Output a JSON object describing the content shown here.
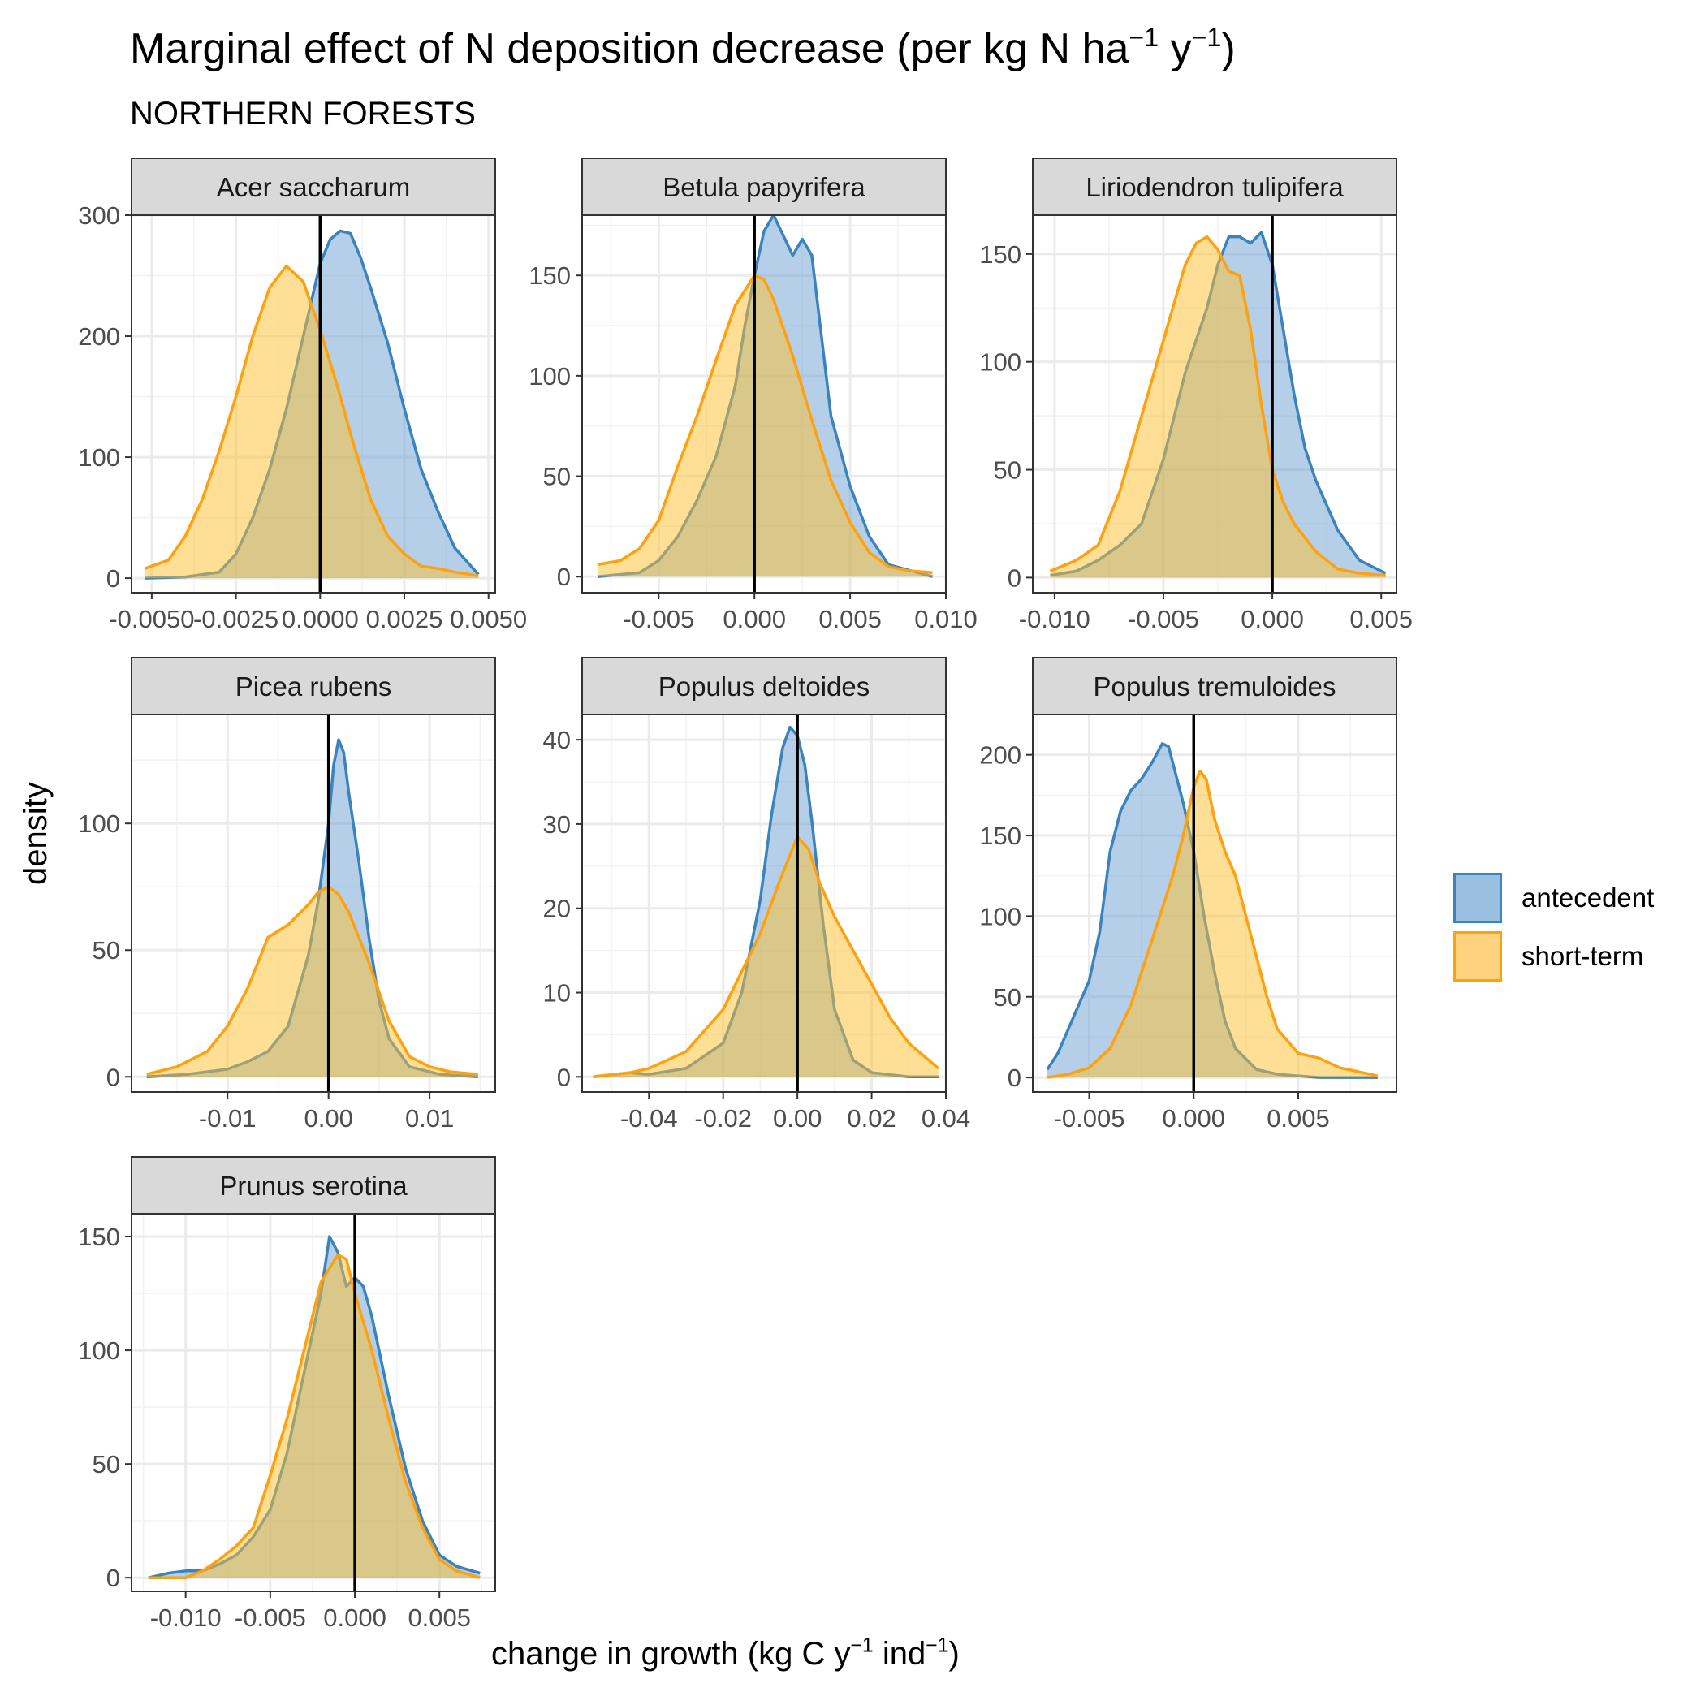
{
  "title": {
    "main": "Marginal effect of N deposition decrease (per kg N ha",
    "exp1": "−1",
    "mid": " y",
    "exp2": "−1",
    "end": ")"
  },
  "subtitle": "NORTHERN FORESTS",
  "xlabel": {
    "main": "change in growth (kg C y",
    "exp1": "−1",
    "mid": " ind",
    "exp2": "−1",
    "end": ")"
  },
  "ylabel": "density",
  "legend": [
    {
      "label": "antecedent",
      "stroke": "#3a83bd",
      "fill": "#9bbfe0"
    },
    {
      "label": "short-term",
      "stroke": "#ffa10f",
      "fill": "#ffd27f"
    }
  ],
  "chart_data": {
    "type": "area",
    "facet_layout": "3 columns",
    "grid": true,
    "legend_position": "right",
    "vline_x": 0,
    "colors": {
      "antecedent": "#3a83bd",
      "short_term": "#ffa10f",
      "overlap": "#c7b06f",
      "strip": "#d9d9d9"
    },
    "panels": [
      {
        "name": "Acer saccharum",
        "xlim": [
          -0.0056,
          0.0052
        ],
        "ylim": [
          -12,
          300
        ],
        "xticks": [
          -0.005,
          -0.0025,
          0,
          0.0025,
          0.005
        ],
        "xtick_labels": [
          "-0.0050",
          "-0.0025",
          "0.0000",
          "0.0025",
          "0.0050"
        ],
        "yticks": [
          0,
          100,
          200,
          300
        ],
        "ytick_labels": [
          "0",
          "100",
          "200",
          "300"
        ],
        "series": [
          {
            "name": "antecedent",
            "x": [
              -0.0052,
              -0.004,
              -0.003,
              -0.0025,
              -0.002,
              -0.0015,
              -0.001,
              -0.0005,
              0,
              0.0003,
              0.0006,
              0.0009,
              0.0012,
              0.0015,
              0.002,
              0.0025,
              0.003,
              0.0035,
              0.004,
              0.0047
            ],
            "y": [
              0,
              1,
              5,
              20,
              50,
              90,
              140,
              200,
              260,
              280,
              287,
              285,
              265,
              240,
              195,
              140,
              90,
              55,
              25,
              3
            ]
          },
          {
            "name": "short-term",
            "x": [
              -0.0052,
              -0.0045,
              -0.004,
              -0.0035,
              -0.003,
              -0.0025,
              -0.002,
              -0.0015,
              -0.001,
              -0.0005,
              0,
              0.0005,
              0.001,
              0.0015,
              0.002,
              0.0025,
              0.003,
              0.0035,
              0.004,
              0.0047
            ],
            "y": [
              8,
              15,
              35,
              65,
              105,
              150,
              200,
              240,
              258,
              245,
              205,
              160,
              110,
              65,
              35,
              20,
              10,
              8,
              5,
              2
            ]
          }
        ]
      },
      {
        "name": "Betula papyrifera",
        "xlim": [
          -0.009,
          0.01
        ],
        "ylim": [
          -8,
          180
        ],
        "xticks": [
          -0.005,
          0,
          0.005,
          0.01
        ],
        "xtick_labels": [
          "-0.005",
          "0.000",
          "0.005",
          "0.010"
        ],
        "yticks": [
          0,
          50,
          100,
          150
        ],
        "ytick_labels": [
          "0",
          "50",
          "100",
          "150"
        ],
        "series": [
          {
            "name": "antecedent",
            "x": [
              -0.0082,
              -0.006,
              -0.005,
              -0.004,
              -0.003,
              -0.002,
              -0.001,
              -0.0005,
              0,
              0.0005,
              0.001,
              0.0015,
              0.002,
              0.0025,
              0.003,
              0.0035,
              0.004,
              0.005,
              0.006,
              0.007,
              0.0093
            ],
            "y": [
              0,
              2,
              8,
              20,
              38,
              60,
              95,
              125,
              150,
              172,
              180,
              170,
              160,
              168,
              160,
              120,
              80,
              45,
              20,
              6,
              0
            ]
          },
          {
            "name": "short-term",
            "x": [
              -0.0082,
              -0.007,
              -0.006,
              -0.005,
              -0.004,
              -0.003,
              -0.002,
              -0.001,
              0,
              0.0005,
              0.001,
              0.002,
              0.003,
              0.004,
              0.005,
              0.006,
              0.007,
              0.008,
              0.0093
            ],
            "y": [
              6,
              8,
              14,
              28,
              55,
              80,
              108,
              135,
              150,
              148,
              138,
              110,
              78,
              48,
              27,
              12,
              5,
              3,
              2
            ]
          }
        ]
      },
      {
        "name": "Liriodendron tulipifera",
        "xlim": [
          -0.011,
          0.0057
        ],
        "ylim": [
          -7,
          168
        ],
        "xticks": [
          -0.01,
          -0.005,
          0,
          0.005
        ],
        "xtick_labels": [
          "-0.010",
          "-0.005",
          "0.000",
          "0.005"
        ],
        "yticks": [
          0,
          50,
          100,
          150
        ],
        "ytick_labels": [
          "0",
          "50",
          "100",
          "150"
        ],
        "series": [
          {
            "name": "antecedent",
            "x": [
              -0.0102,
              -0.009,
              -0.008,
              -0.007,
              -0.006,
              -0.005,
              -0.004,
              -0.003,
              -0.0025,
              -0.002,
              -0.0015,
              -0.001,
              -0.0005,
              0,
              0.0005,
              0.001,
              0.0015,
              0.002,
              0.003,
              0.004,
              0.0052
            ],
            "y": [
              1,
              3,
              8,
              15,
              25,
              55,
              95,
              125,
              145,
              158,
              158,
              155,
              160,
              145,
              115,
              85,
              60,
              45,
              22,
              8,
              2
            ]
          },
          {
            "name": "short-term",
            "x": [
              -0.0102,
              -0.009,
              -0.008,
              -0.007,
              -0.006,
              -0.005,
              -0.004,
              -0.0035,
              -0.003,
              -0.0025,
              -0.002,
              -0.0015,
              -0.001,
              -0.0005,
              0,
              0.0005,
              0.001,
              0.002,
              0.003,
              0.004,
              0.0052
            ],
            "y": [
              3,
              8,
              15,
              40,
              75,
              110,
              145,
              155,
              158,
              152,
              142,
              140,
              115,
              80,
              50,
              35,
              25,
              12,
              4,
              2,
              1
            ]
          }
        ]
      },
      {
        "name": "Picea rubens",
        "xlim": [
          -0.0195,
          0.0165
        ],
        "ylim": [
          -6,
          143
        ],
        "xticks": [
          -0.01,
          0,
          0.01
        ],
        "xtick_labels": [
          "-0.01",
          "0.00",
          "0.01"
        ],
        "yticks": [
          0,
          50,
          100
        ],
        "ytick_labels": [
          "0",
          "50",
          "100"
        ],
        "series": [
          {
            "name": "antecedent",
            "x": [
              -0.018,
              -0.014,
              -0.01,
              -0.008,
              -0.006,
              -0.004,
              -0.002,
              -0.001,
              0,
              0.0005,
              0.001,
              0.0015,
              0.002,
              0.003,
              0.004,
              0.005,
              0.006,
              0.008,
              0.011,
              0.0148
            ],
            "y": [
              0,
              1,
              3,
              6,
              10,
              20,
              48,
              70,
              100,
              123,
              133,
              128,
              112,
              85,
              55,
              30,
              15,
              4,
              1,
              0
            ]
          },
          {
            "name": "short-term",
            "x": [
              -0.018,
              -0.015,
              -0.012,
              -0.01,
              -0.008,
              -0.006,
              -0.004,
              -0.002,
              -0.001,
              0,
              0.001,
              0.002,
              0.004,
              0.006,
              0.008,
              0.01,
              0.012,
              0.0148
            ],
            "y": [
              1,
              4,
              10,
              20,
              35,
              55,
              60,
              68,
              73,
              75,
              72,
              65,
              45,
              22,
              8,
              4,
              2,
              1
            ]
          }
        ]
      },
      {
        "name": "Populus deltoides",
        "xlim": [
          -0.058,
          0.04
        ],
        "ylim": [
          -1.8,
          43
        ],
        "xticks": [
          -0.04,
          -0.02,
          0,
          0.02,
          0.04
        ],
        "xtick_labels": [
          "-0.04",
          "-0.02",
          "0.00",
          "0.02",
          "0.04"
        ],
        "yticks": [
          0,
          10,
          20,
          30,
          40
        ],
        "ytick_labels": [
          "0",
          "10",
          "20",
          "30",
          "40"
        ],
        "series": [
          {
            "name": "antecedent",
            "x": [
              -0.055,
              -0.045,
              -0.04,
              -0.03,
              -0.02,
              -0.015,
              -0.01,
              -0.007,
              -0.004,
              -0.002,
              0,
              0.002,
              0.004,
              0.007,
              0.01,
              0.015,
              0.02,
              0.03,
              0.038
            ],
            "y": [
              0,
              0.5,
              0.3,
              1,
              4,
              10,
              21,
              31,
              39,
              41.5,
              40.5,
              37,
              30,
              18,
              8,
              2,
              0.5,
              0,
              0
            ]
          },
          {
            "name": "short-term",
            "x": [
              -0.055,
              -0.045,
              -0.04,
              -0.03,
              -0.02,
              -0.01,
              -0.005,
              0,
              0.003,
              0.006,
              0.01,
              0.015,
              0.02,
              0.025,
              0.03,
              0.038
            ],
            "y": [
              0,
              0.5,
              1,
              3,
              8,
              17,
              23,
              28.5,
              27,
              23,
              19,
              15,
              11,
              7,
              4,
              1
            ]
          }
        ]
      },
      {
        "name": "Populus tremuloides",
        "xlim": [
          -0.0077,
          0.0097
        ],
        "ylim": [
          -9,
          225
        ],
        "xticks": [
          -0.005,
          0,
          0.005
        ],
        "xtick_labels": [
          "-0.005",
          "0.000",
          "0.005"
        ],
        "yticks": [
          0,
          50,
          100,
          150,
          200
        ],
        "ytick_labels": [
          "0",
          "50",
          "100",
          "150",
          "200"
        ],
        "series": [
          {
            "name": "antecedent",
            "x": [
              -0.007,
              -0.0065,
              -0.006,
              -0.0055,
              -0.005,
              -0.0045,
              -0.004,
              -0.0035,
              -0.003,
              -0.0025,
              -0.002,
              -0.0015,
              -0.0012,
              -0.001,
              -0.0005,
              0,
              0.0005,
              0.001,
              0.0015,
              0.002,
              0.003,
              0.004,
              0.005,
              0.006,
              0.0088
            ],
            "y": [
              5,
              15,
              30,
              45,
              60,
              90,
              140,
              165,
              178,
              185,
              195,
              207,
              205,
              195,
              170,
              140,
              100,
              65,
              35,
              18,
              5,
              2,
              1,
              0,
              0
            ]
          },
          {
            "name": "short-term",
            "x": [
              -0.007,
              -0.006,
              -0.005,
              -0.004,
              -0.003,
              -0.002,
              -0.001,
              -0.0005,
              0,
              0.0003,
              0.0006,
              0.001,
              0.0015,
              0.002,
              0.0025,
              0.003,
              0.0035,
              0.004,
              0.005,
              0.006,
              0.007,
              0.0088
            ],
            "y": [
              0,
              2,
              6,
              18,
              45,
              85,
              125,
              150,
              180,
              190,
              185,
              160,
              140,
              125,
              100,
              75,
              50,
              30,
              15,
              12,
              6,
              1
            ]
          }
        ]
      },
      {
        "name": "Prunus serotina",
        "xlim": [
          -0.0132,
          0.0083
        ],
        "ylim": [
          -6,
          160
        ],
        "xticks": [
          -0.01,
          -0.005,
          0,
          0.005
        ],
        "xtick_labels": [
          "-0.010",
          "-0.005",
          "0.000",
          "0.005"
        ],
        "yticks": [
          0,
          50,
          100,
          150
        ],
        "ytick_labels": [
          "0",
          "50",
          "100",
          "150"
        ],
        "series": [
          {
            "name": "antecedent",
            "x": [
              -0.0122,
              -0.011,
              -0.01,
              -0.009,
              -0.008,
              -0.007,
              -0.006,
              -0.005,
              -0.004,
              -0.003,
              -0.002,
              -0.0015,
              -0.001,
              -0.0005,
              0,
              0.0005,
              0.001,
              0.002,
              0.003,
              0.004,
              0.005,
              0.006,
              0.0074
            ],
            "y": [
              0,
              2,
              3,
              3,
              6,
              10,
              18,
              30,
              55,
              90,
              125,
              150,
              143,
              128,
              132,
              128,
              115,
              80,
              48,
              25,
              10,
              5,
              2
            ]
          },
          {
            "name": "short-term",
            "x": [
              -0.0122,
              -0.01,
              -0.009,
              -0.008,
              -0.007,
              -0.006,
              -0.005,
              -0.004,
              -0.003,
              -0.002,
              -0.001,
              -0.0005,
              0,
              0.001,
              0.002,
              0.003,
              0.004,
              0.005,
              0.006,
              0.0074
            ],
            "y": [
              0,
              0,
              3,
              8,
              14,
              22,
              45,
              70,
              100,
              130,
              142,
              140,
              125,
              100,
              70,
              42,
              22,
              8,
              3,
              0
            ]
          }
        ]
      }
    ]
  }
}
